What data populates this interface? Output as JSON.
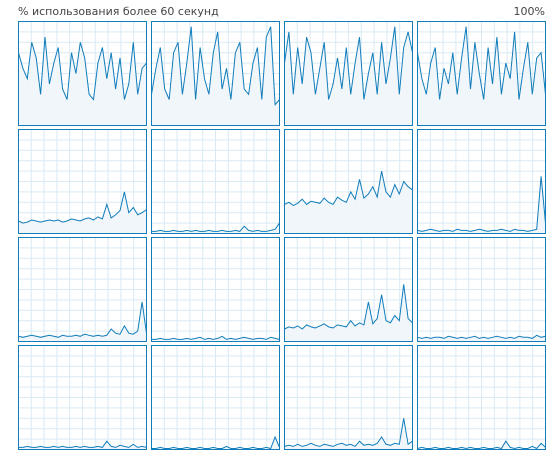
{
  "header": {
    "title": "% использования более 60 секунд",
    "max_label": "100%"
  },
  "chart_data": [
    {
      "type": "line",
      "color": "#117dbb",
      "ylim": [
        0,
        100
      ],
      "values": [
        70,
        55,
        45,
        80,
        65,
        30,
        85,
        40,
        60,
        75,
        35,
        25,
        70,
        50,
        80,
        65,
        30,
        25,
        60,
        75,
        45,
        70,
        35,
        65,
        25,
        40,
        80,
        30,
        55,
        60
      ]
    },
    {
      "type": "line",
      "color": "#117dbb",
      "ylim": [
        0,
        100
      ],
      "values": [
        30,
        55,
        75,
        35,
        25,
        70,
        80,
        30,
        60,
        95,
        25,
        75,
        45,
        30,
        70,
        90,
        35,
        55,
        25,
        70,
        80,
        35,
        30,
        60,
        75,
        25,
        85,
        95,
        20,
        25
      ]
    },
    {
      "type": "line",
      "color": "#117dbb",
      "ylim": [
        0,
        100
      ],
      "values": [
        60,
        90,
        30,
        75,
        40,
        85,
        70,
        30,
        55,
        80,
        25,
        40,
        65,
        35,
        75,
        30,
        60,
        85,
        25,
        50,
        70,
        30,
        80,
        40,
        65,
        95,
        30,
        75,
        90,
        70
      ]
    },
    {
      "type": "line",
      "color": "#117dbb",
      "ylim": [
        0,
        100
      ],
      "values": [
        70,
        45,
        30,
        60,
        75,
        25,
        55,
        40,
        70,
        30,
        65,
        95,
        35,
        80,
        50,
        25,
        75,
        40,
        85,
        30,
        60,
        45,
        90,
        25,
        55,
        80,
        30,
        65,
        70,
        30
      ]
    },
    {
      "type": "line",
      "color": "#117dbb",
      "ylim": [
        0,
        100
      ],
      "values": [
        12,
        10,
        11,
        13,
        12,
        11,
        12,
        13,
        12,
        13,
        11,
        12,
        14,
        13,
        12,
        14,
        15,
        13,
        16,
        14,
        28,
        15,
        18,
        22,
        40,
        20,
        25,
        18,
        20,
        23
      ]
    },
    {
      "type": "line",
      "color": "#117dbb",
      "ylim": [
        0,
        100
      ],
      "values": [
        2,
        2,
        3,
        2,
        2,
        3,
        2,
        2,
        3,
        2,
        3,
        2,
        2,
        3,
        2,
        2,
        3,
        2,
        2,
        3,
        2,
        7,
        3,
        2,
        3,
        2,
        2,
        3,
        4,
        10
      ]
    },
    {
      "type": "line",
      "color": "#117dbb",
      "ylim": [
        0,
        100
      ],
      "values": [
        28,
        30,
        27,
        29,
        33,
        28,
        31,
        30,
        29,
        34,
        30,
        28,
        35,
        32,
        30,
        40,
        33,
        52,
        34,
        38,
        45,
        35,
        60,
        40,
        35,
        47,
        38,
        50,
        45,
        42
      ]
    },
    {
      "type": "line",
      "color": "#117dbb",
      "ylim": [
        0,
        100
      ],
      "values": [
        3,
        2,
        3,
        4,
        3,
        2,
        3,
        3,
        2,
        4,
        3,
        3,
        2,
        3,
        4,
        3,
        2,
        3,
        3,
        4,
        3,
        2,
        4,
        3,
        3,
        2,
        3,
        4,
        55,
        10
      ]
    },
    {
      "type": "line",
      "color": "#117dbb",
      "ylim": [
        0,
        100
      ],
      "values": [
        5,
        4,
        5,
        6,
        5,
        4,
        5,
        6,
        5,
        4,
        6,
        5,
        5,
        6,
        5,
        7,
        6,
        5,
        6,
        5,
        6,
        12,
        8,
        7,
        15,
        8,
        7,
        10,
        38,
        8
      ]
    },
    {
      "type": "line",
      "color": "#117dbb",
      "ylim": [
        0,
        100
      ],
      "values": [
        2,
        2,
        3,
        2,
        2,
        3,
        2,
        2,
        3,
        2,
        3,
        4,
        2,
        3,
        2,
        3,
        5,
        2,
        3,
        2,
        3,
        4,
        3,
        2,
        3,
        3,
        2,
        4,
        3,
        2
      ]
    },
    {
      "type": "line",
      "color": "#117dbb",
      "ylim": [
        0,
        100
      ],
      "values": [
        12,
        14,
        13,
        15,
        12,
        16,
        14,
        13,
        15,
        17,
        14,
        13,
        16,
        15,
        14,
        20,
        15,
        18,
        16,
        38,
        17,
        22,
        45,
        20,
        18,
        25,
        20,
        55,
        22,
        18
      ]
    },
    {
      "type": "line",
      "color": "#117dbb",
      "ylim": [
        0,
        100
      ],
      "values": [
        4,
        3,
        4,
        3,
        4,
        4,
        3,
        5,
        4,
        3,
        4,
        3,
        4,
        5,
        3,
        4,
        3,
        4,
        5,
        4,
        3,
        4,
        3,
        5,
        4,
        4,
        3,
        6,
        4,
        5
      ]
    },
    {
      "type": "line",
      "color": "#117dbb",
      "ylim": [
        0,
        100
      ],
      "values": [
        2,
        2,
        3,
        2,
        2,
        3,
        2,
        2,
        3,
        2,
        3,
        2,
        2,
        3,
        2,
        3,
        2,
        2,
        3,
        2,
        8,
        3,
        2,
        4,
        3,
        2,
        5,
        2,
        3,
        2
      ]
    },
    {
      "type": "line",
      "color": "#117dbb",
      "ylim": [
        0,
        100
      ],
      "values": [
        1,
        1,
        2,
        1,
        1,
        2,
        1,
        1,
        2,
        1,
        1,
        2,
        1,
        1,
        2,
        1,
        1,
        3,
        1,
        1,
        2,
        1,
        1,
        2,
        1,
        1,
        2,
        1,
        12,
        2
      ]
    },
    {
      "type": "line",
      "color": "#117dbb",
      "ylim": [
        0,
        100
      ],
      "values": [
        3,
        4,
        3,
        5,
        3,
        4,
        6,
        4,
        3,
        5,
        4,
        3,
        5,
        6,
        4,
        5,
        3,
        8,
        4,
        5,
        4,
        6,
        12,
        5,
        4,
        6,
        5,
        30,
        5,
        8
      ]
    },
    {
      "type": "line",
      "color": "#117dbb",
      "ylim": [
        0,
        100
      ],
      "values": [
        1,
        2,
        1,
        1,
        2,
        1,
        1,
        2,
        1,
        1,
        2,
        1,
        2,
        1,
        1,
        2,
        1,
        1,
        2,
        1,
        8,
        2,
        1,
        2,
        1,
        1,
        3,
        1,
        6,
        2
      ]
    }
  ]
}
